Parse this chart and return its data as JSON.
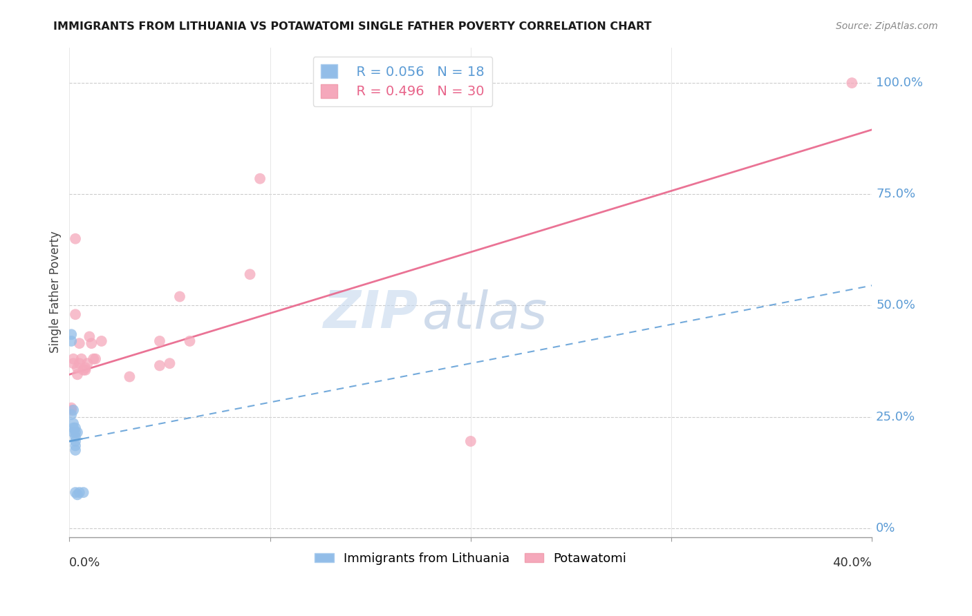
{
  "title": "IMMIGRANTS FROM LITHUANIA VS POTAWATOMI SINGLE FATHER POVERTY CORRELATION CHART",
  "source": "Source: ZipAtlas.com",
  "ylabel": "Single Father Poverty",
  "xlim": [
    0.0,
    0.4
  ],
  "ylim": [
    -0.02,
    1.08
  ],
  "xtick_values": [
    0.0,
    0.1,
    0.2,
    0.3,
    0.4
  ],
  "xtick_labels": [
    "0.0%",
    "",
    "",
    "",
    "40.0%"
  ],
  "ytick_values": [
    0.0,
    0.25,
    0.5,
    0.75,
    1.0
  ],
  "ytick_labels": [
    "0%",
    "25.0%",
    "50.0%",
    "75.0%",
    "100.0%"
  ],
  "legend_blue_r": "R = 0.056",
  "legend_blue_n": "N = 18",
  "legend_pink_r": "R = 0.496",
  "legend_pink_n": "N = 30",
  "blue_color": "#92bde8",
  "pink_color": "#f5a8bb",
  "blue_line_color": "#5b9bd5",
  "pink_line_color": "#e8648a",
  "watermark_zip": "ZIP",
  "watermark_atlas": "atlas",
  "pink_line_x0": 0.0,
  "pink_line_y0": 0.345,
  "pink_line_x1": 0.4,
  "pink_line_y1": 0.895,
  "blue_line_x0": 0.0,
  "blue_line_y0": 0.195,
  "blue_line_x1": 0.4,
  "blue_line_y1": 0.545,
  "blue_points_x": [
    0.001,
    0.001,
    0.001,
    0.002,
    0.002,
    0.002,
    0.002,
    0.003,
    0.003,
    0.003,
    0.003,
    0.003,
    0.003,
    0.003,
    0.004,
    0.004,
    0.005,
    0.007
  ],
  "blue_points_y": [
    0.435,
    0.42,
    0.255,
    0.265,
    0.235,
    0.225,
    0.215,
    0.225,
    0.215,
    0.205,
    0.195,
    0.185,
    0.175,
    0.08,
    0.215,
    0.075,
    0.08,
    0.08
  ],
  "pink_points_x": [
    0.001,
    0.001,
    0.002,
    0.002,
    0.003,
    0.003,
    0.004,
    0.004,
    0.005,
    0.005,
    0.006,
    0.007,
    0.008,
    0.009,
    0.01,
    0.011,
    0.013,
    0.016,
    0.03,
    0.045,
    0.045,
    0.05,
    0.055,
    0.06,
    0.09,
    0.095,
    0.2,
    0.39,
    0.008,
    0.012
  ],
  "pink_points_y": [
    0.27,
    0.265,
    0.38,
    0.37,
    0.65,
    0.48,
    0.36,
    0.345,
    0.415,
    0.37,
    0.38,
    0.355,
    0.355,
    0.37,
    0.43,
    0.415,
    0.38,
    0.42,
    0.34,
    0.42,
    0.365,
    0.37,
    0.52,
    0.42,
    0.57,
    0.785,
    0.195,
    1.0,
    0.36,
    0.38
  ]
}
